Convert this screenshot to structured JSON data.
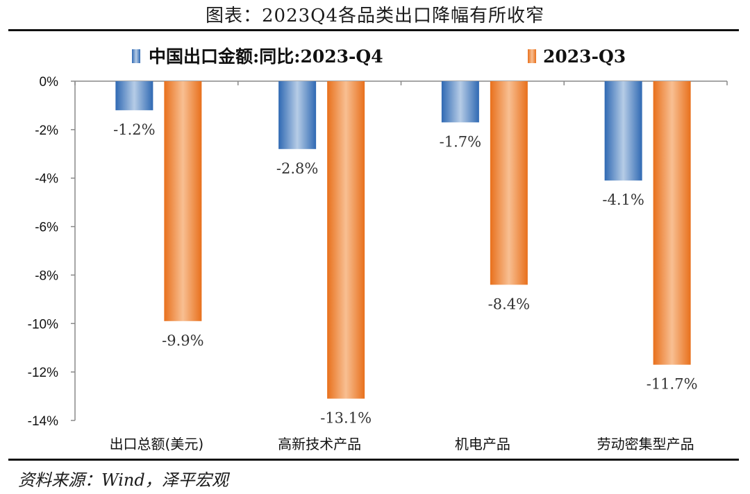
{
  "title": "图表：2023Q4各品类出口降幅有所收窄",
  "source": "资料来源：Wind，泽平宏观",
  "chart_data": {
    "type": "bar",
    "title": "图表：2023Q4各品类出口降幅有所收窄",
    "categories": [
      "出口总额(美元)",
      "高新技术产品",
      "机电产品",
      "劳动密集型产品"
    ],
    "series": [
      {
        "name": "中国出口金额:同比:2023-Q4",
        "values": [
          -1.2,
          -2.8,
          -1.7,
          -4.1
        ],
        "labels": [
          "-1.2%",
          "-2.8%",
          "-1.7%",
          "-4.1%"
        ],
        "color": "#4a7fc0"
      },
      {
        "name": "2023-Q3",
        "values": [
          -9.9,
          -13.1,
          -8.4,
          -11.7
        ],
        "labels": [
          "-9.9%",
          "-13.1%",
          "-8.4%",
          "-11.7%"
        ],
        "color": "#ee8233"
      }
    ],
    "yticks": [
      "0%",
      "-2%",
      "-4%",
      "-6%",
      "-8%",
      "-10%",
      "-12%",
      "-14%"
    ],
    "ylim": [
      -14,
      0
    ],
    "xlabel": "",
    "ylabel": "",
    "legend": "top"
  }
}
